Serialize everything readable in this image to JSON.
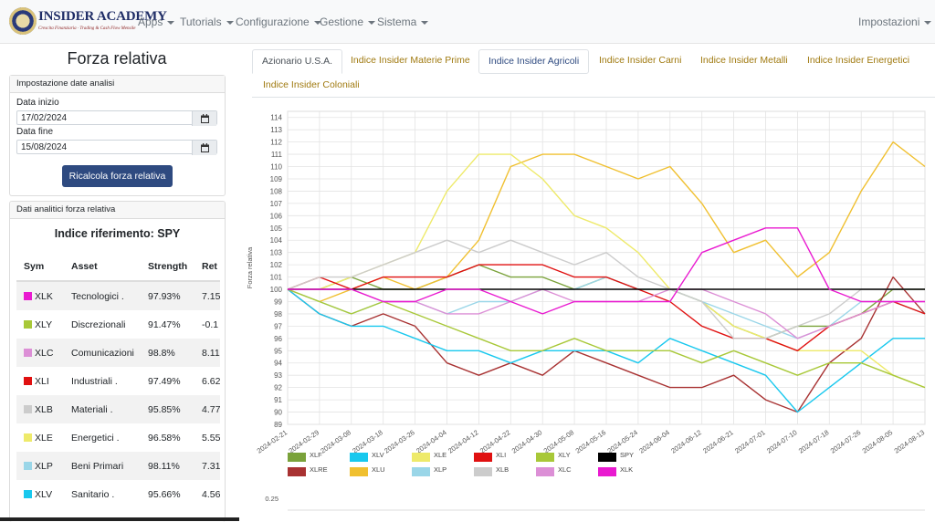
{
  "brand": {
    "name": "INSIDER ACADEMY",
    "tagline": "Crescita Finanziaria · Trading & Cash Flow Mensile"
  },
  "nav": {
    "items": [
      "Apps",
      "Tutorials",
      "Configurazione",
      "Gestione",
      "Sistema"
    ],
    "right": "Impostazioni"
  },
  "page": {
    "title": "Forza relativa"
  },
  "dates_card": {
    "header": "Impostazione date analisi",
    "start_label": "Data inizio",
    "start_value": "17/02/2024",
    "end_label": "Data fine",
    "end_value": "15/08/2024",
    "button": "Ricalcola forza relativa"
  },
  "analytics_card": {
    "header": "Dati analitici forza relativa",
    "reference": "Indice riferimento: SPY",
    "columns": [
      "Sym",
      "Asset",
      "Strength",
      "Ret"
    ],
    "rows": [
      {
        "sym": "XLK",
        "asset": "Tecnologici .",
        "strength": "97.93%",
        "ret": "7.15",
        "color": "#e91ad0"
      },
      {
        "sym": "XLY",
        "asset": "Discrezionali",
        "strength": "91.47%",
        "ret": "-0.1",
        "color": "#a8c838"
      },
      {
        "sym": "XLC",
        "asset": "Comunicazioni",
        "strength": "98.8%",
        "ret": "8.11",
        "color": "#dc8fd6"
      },
      {
        "sym": "XLI",
        "asset": "Industriali .",
        "strength": "97.49%",
        "ret": "6.62",
        "color": "#e01010"
      },
      {
        "sym": "XLB",
        "asset": "Materiali .",
        "strength": "95.85%",
        "ret": "4.77",
        "color": "#cccccc"
      },
      {
        "sym": "XLE",
        "asset": "Energetici .",
        "strength": "96.58%",
        "ret": "5.55",
        "color": "#eeea6a"
      },
      {
        "sym": "XLP",
        "asset": "Beni Primari",
        "strength": "98.11%",
        "ret": "7.31",
        "color": "#9ad6e8"
      },
      {
        "sym": "XLV",
        "asset": "Sanitario .",
        "strength": "95.66%",
        "ret": "4.56",
        "color": "#18c8ee"
      }
    ]
  },
  "tabs": [
    "Azionario U.S.A.",
    "Indice Insider Materie Prime",
    "Indice Insider Agricoli",
    "Indice Insider Carni",
    "Indice Insider Metalli",
    "Indice Insider Energetici",
    "Indice Insider Coloniali"
  ],
  "chart_data": {
    "type": "line",
    "ylabel": "Forza relativa",
    "ylim": [
      89,
      114.5
    ],
    "grid": true,
    "legend_position": "bottom",
    "x": [
      "2024-02-21",
      "2024-02-29",
      "2024-03-08",
      "2024-03-18",
      "2024-03-26",
      "2024-04-04",
      "2024-04-12",
      "2024-04-22",
      "2024-04-30",
      "2024-05-08",
      "2024-05-16",
      "2024-05-24",
      "2024-06-04",
      "2024-06-12",
      "2024-06-21",
      "2024-07-01",
      "2024-07-10",
      "2024-07-18",
      "2024-07-26",
      "2024-08-05",
      "2024-08-13"
    ],
    "series": [
      {
        "name": "XLF",
        "color": "#7aa23a",
        "values": [
          100,
          100,
          101,
          100,
          100,
          101,
          102,
          101,
          101,
          100,
          101,
          100,
          100,
          99,
          97,
          96,
          97,
          97,
          98,
          100,
          100
        ]
      },
      {
        "name": "XLRE",
        "color": "#a83232",
        "values": [
          100,
          98,
          97,
          98,
          97,
          94,
          93,
          94,
          93,
          95,
          94,
          93,
          92,
          92,
          93,
          91,
          90,
          94,
          96,
          101,
          98
        ]
      },
      {
        "name": "XLV",
        "color": "#18c8ee",
        "values": [
          100,
          98,
          97,
          97,
          96,
          95,
          95,
          94,
          95,
          95,
          95,
          94,
          96,
          95,
          94,
          93,
          90,
          92,
          94,
          96,
          96
        ]
      },
      {
        "name": "XLU",
        "color": "#f0c030",
        "values": [
          100,
          99,
          100,
          101,
          100,
          101,
          104,
          110,
          111,
          111,
          110,
          109,
          110,
          107,
          103,
          104,
          101,
          103,
          108,
          112,
          110
        ]
      },
      {
        "name": "XLE",
        "color": "#eeea6a",
        "values": [
          100,
          100,
          101,
          102,
          103,
          108,
          111,
          111,
          109,
          106,
          105,
          103,
          100,
          99,
          97,
          96,
          95,
          95,
          95,
          93,
          92
        ]
      },
      {
        "name": "XLP",
        "color": "#9ad6e8",
        "values": [
          100,
          99,
          98,
          99,
          99,
          98,
          99,
          99,
          100,
          100,
          101,
          100,
          100,
          99,
          98,
          97,
          96,
          97,
          99,
          99,
          98
        ]
      },
      {
        "name": "XLI",
        "color": "#e01010",
        "values": [
          100,
          101,
          100,
          101,
          101,
          101,
          102,
          102,
          102,
          101,
          101,
          100,
          99,
          97,
          96,
          96,
          95,
          97,
          98,
          99,
          98
        ]
      },
      {
        "name": "XLB",
        "color": "#cccccc",
        "values": [
          100,
          101,
          101,
          102,
          103,
          104,
          103,
          104,
          103,
          102,
          103,
          101,
          100,
          99,
          96,
          96,
          97,
          98,
          100,
          100,
          100
        ]
      },
      {
        "name": "XLY",
        "color": "#a8c838",
        "values": [
          100,
          99,
          98,
          99,
          98,
          97,
          96,
          95,
          95,
          96,
          95,
          95,
          95,
          94,
          95,
          94,
          93,
          94,
          94,
          93,
          92
        ]
      },
      {
        "name": "XLC",
        "color": "#dc8fd6",
        "values": [
          100,
          100,
          100,
          99,
          99,
          98,
          98,
          99,
          100,
          99,
          99,
          99,
          100,
          100,
          99,
          98,
          96,
          97,
          98,
          99,
          99
        ]
      },
      {
        "name": "SPY",
        "color": "#000000",
        "values": [
          100,
          100,
          100,
          100,
          100,
          100,
          100,
          100,
          100,
          100,
          100,
          100,
          100,
          100,
          100,
          100,
          100,
          100,
          100,
          100,
          100
        ]
      },
      {
        "name": "XLK",
        "color": "#e91ad0",
        "values": [
          100,
          100,
          100,
          99,
          99,
          100,
          100,
          99,
          98,
          99,
          99,
          99,
          99,
          103,
          104,
          105,
          105,
          100,
          99,
          99,
          99
        ]
      }
    ]
  }
}
